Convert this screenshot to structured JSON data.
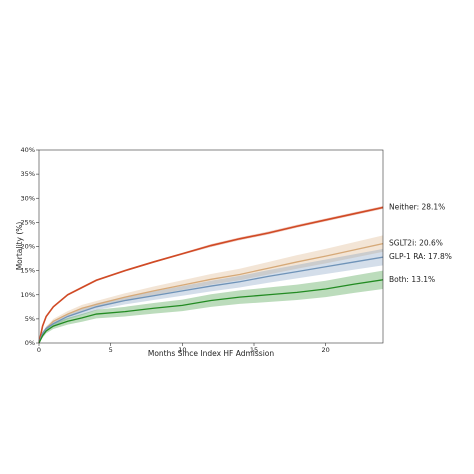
{
  "chart_data": {
    "type": "line",
    "x_label": "Months Since Index HF Admission",
    "y_label": "Mortality (%)",
    "x": [
      0,
      0.25,
      0.5,
      1,
      2,
      3,
      4,
      6,
      8,
      10,
      12,
      14,
      16,
      18,
      20,
      22,
      24
    ],
    "xlim": [
      0,
      24
    ],
    "ylim": [
      0,
      40
    ],
    "xticks": [
      0,
      5,
      10,
      15,
      20
    ],
    "yticks": [
      {
        "value": 0,
        "label": "0%"
      },
      {
        "value": 5,
        "label": "5%"
      },
      {
        "value": 10,
        "label": "10%"
      },
      {
        "value": 15,
        "label": "15%"
      },
      {
        "value": 20,
        "label": "20%"
      },
      {
        "value": 25,
        "label": "25%"
      },
      {
        "value": 30,
        "label": "30%"
      },
      {
        "value": 35,
        "label": "35%"
      },
      {
        "value": 40,
        "label": "40%"
      }
    ],
    "series": [
      {
        "name": "Neither",
        "end_label": "Neither: 28.1%",
        "color": "#d04a25",
        "values": [
          0,
          3.5,
          5.5,
          7.5,
          10,
          11.5,
          13,
          15,
          16.8,
          18.5,
          20.2,
          21.6,
          22.8,
          24.2,
          25.5,
          26.8,
          28.1
        ],
        "lower": [
          0,
          3.3,
          5.3,
          7.3,
          9.8,
          11.3,
          12.8,
          14.8,
          16.6,
          18.3,
          19.9,
          21.3,
          22.5,
          23.9,
          25.2,
          26.5,
          27.8
        ],
        "upper": [
          0,
          3.7,
          5.7,
          7.7,
          10.2,
          11.7,
          13.2,
          15.2,
          17,
          18.7,
          20.5,
          21.9,
          23.1,
          24.5,
          25.8,
          27.1,
          28.4
        ]
      },
      {
        "name": "SGLT2i",
        "end_label": "SGLT2i: 20.6%",
        "color": "#d6a978",
        "values": [
          0,
          2,
          3,
          4.5,
          6,
          7.2,
          8,
          9.5,
          10.8,
          12,
          13.2,
          14.2,
          15.5,
          16.8,
          18,
          19.3,
          20.6
        ],
        "lower": [
          0,
          1.7,
          2.6,
          4,
          5.4,
          6.5,
          7.3,
          8.7,
          9.9,
          11,
          12.1,
          13,
          14.2,
          15.4,
          16.5,
          17.7,
          18.9
        ],
        "upper": [
          0,
          2.3,
          3.4,
          5,
          6.6,
          7.9,
          8.7,
          10.3,
          11.7,
          13,
          14.3,
          15.4,
          16.8,
          18.2,
          19.5,
          20.9,
          22.3
        ]
      },
      {
        "name": "GLP-1 RA",
        "end_label": "GLP-1 RA: 17.8%",
        "color": "#6f93b8",
        "values": [
          0,
          2,
          3,
          4,
          5.5,
          6.5,
          7.5,
          8.8,
          9.8,
          10.8,
          11.8,
          12.7,
          13.8,
          14.8,
          15.8,
          16.8,
          17.8
        ],
        "lower": [
          0,
          1.7,
          2.6,
          3.5,
          4.9,
          5.8,
          6.8,
          8,
          8.9,
          9.8,
          10.7,
          11.5,
          12.5,
          13.4,
          14.3,
          15.2,
          16.1
        ],
        "upper": [
          0,
          2.3,
          3.4,
          4.5,
          6.1,
          7.2,
          8.2,
          9.6,
          10.7,
          11.8,
          12.9,
          13.9,
          15.1,
          16.2,
          17.3,
          18.4,
          19.5
        ]
      },
      {
        "name": "Both",
        "end_label": "Both: 13.1%",
        "color": "#228b22",
        "values": [
          0,
          1.5,
          2.5,
          3.5,
          4.5,
          5.2,
          6,
          6.5,
          7.2,
          7.8,
          8.8,
          9.5,
          10,
          10.5,
          11.2,
          12.2,
          13.1
        ],
        "lower": [
          0,
          1.1,
          2,
          2.9,
          3.8,
          4.4,
          5.1,
          5.5,
          6.1,
          6.6,
          7.5,
          8.1,
          8.5,
          8.9,
          9.5,
          10.4,
          11.2
        ],
        "upper": [
          0,
          1.9,
          3,
          4.1,
          5.2,
          6,
          6.9,
          7.5,
          8.3,
          9,
          10.1,
          10.9,
          11.5,
          12.1,
          12.9,
          14,
          15
        ]
      }
    ]
  }
}
